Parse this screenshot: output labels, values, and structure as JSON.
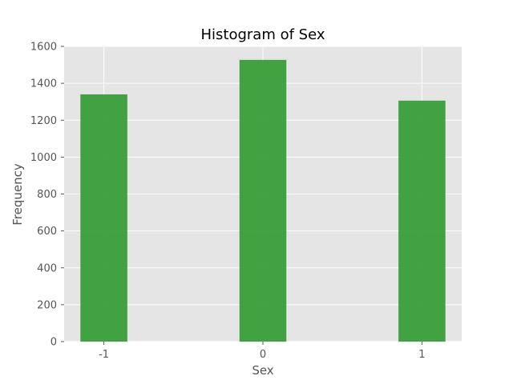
{
  "chart_data": {
    "type": "bar",
    "title": "Histogram of Sex",
    "xlabel": "Sex",
    "ylabel": "Frequency",
    "categories": [
      "-1",
      "0",
      "1"
    ],
    "x": [
      -1,
      0,
      1
    ],
    "values": [
      1340,
      1527,
      1306
    ],
    "xlim": [
      -1.25,
      1.25
    ],
    "ylim": [
      0,
      1600
    ],
    "yticks": [
      "0",
      "200",
      "400",
      "600",
      "800",
      "1000",
      "1200",
      "1400",
      "1600"
    ],
    "ytick_values": [
      0,
      200,
      400,
      600,
      800,
      1000,
      1200,
      1400,
      1600
    ],
    "bar_color": "#2e9a2e",
    "background_color": "#e5e5e5",
    "grid": true,
    "grid_color": "#ffffff"
  }
}
